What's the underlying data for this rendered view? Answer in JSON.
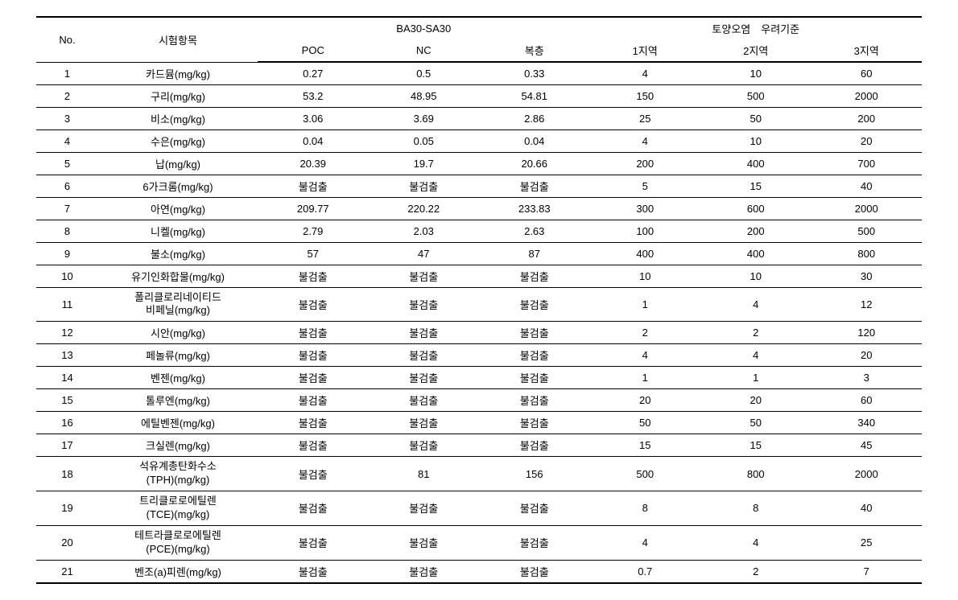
{
  "table": {
    "header": {
      "no": "No.",
      "item": "시험항목",
      "group1": "BA30-SA30",
      "group2": "토양오염　우려기준",
      "poc": "POC",
      "nc": "NC",
      "dup": "복층",
      "zone1": "1지역",
      "zone2": "2지역",
      "zone3": "3지역"
    },
    "rows": [
      {
        "no": "1",
        "item": "카드뮴(mg/kg)",
        "poc": "0.27",
        "nc": "0.5",
        "dup": "0.33",
        "z1": "4",
        "z2": "10",
        "z3": "60"
      },
      {
        "no": "2",
        "item": "구리(mg/kg)",
        "poc": "53.2",
        "nc": "48.95",
        "dup": "54.81",
        "z1": "150",
        "z2": "500",
        "z3": "2000"
      },
      {
        "no": "3",
        "item": "비소(mg/kg)",
        "poc": "3.06",
        "nc": "3.69",
        "dup": "2.86",
        "z1": "25",
        "z2": "50",
        "z3": "200"
      },
      {
        "no": "4",
        "item": "수은(mg/kg)",
        "poc": "0.04",
        "nc": "0.05",
        "dup": "0.04",
        "z1": "4",
        "z2": "10",
        "z3": "20"
      },
      {
        "no": "5",
        "item": "납(mg/kg)",
        "poc": "20.39",
        "nc": "19.7",
        "dup": "20.66",
        "z1": "200",
        "z2": "400",
        "z3": "700"
      },
      {
        "no": "6",
        "item": "6가크롬(mg/kg)",
        "poc": "불검출",
        "nc": "불검출",
        "dup": "불검출",
        "z1": "5",
        "z2": "15",
        "z3": "40"
      },
      {
        "no": "7",
        "item": "아연(mg/kg)",
        "poc": "209.77",
        "nc": "220.22",
        "dup": "233.83",
        "z1": "300",
        "z2": "600",
        "z3": "2000"
      },
      {
        "no": "8",
        "item": "니켈(mg/kg)",
        "poc": "2.79",
        "nc": "2.03",
        "dup": "2.63",
        "z1": "100",
        "z2": "200",
        "z3": "500"
      },
      {
        "no": "9",
        "item": "불소(mg/kg)",
        "poc": "57",
        "nc": "47",
        "dup": "87",
        "z1": "400",
        "z2": "400",
        "z3": "800"
      },
      {
        "no": "10",
        "item": "유기인화합물(mg/kg)",
        "poc": "불검출",
        "nc": "불검출",
        "dup": "불검출",
        "z1": "10",
        "z2": "10",
        "z3": "30"
      },
      {
        "no": "11",
        "item": "폴리클로리네이티드\n비페닐(mg/kg)",
        "poc": "불검출",
        "nc": "불검출",
        "dup": "불검출",
        "z1": "1",
        "z2": "4",
        "z3": "12"
      },
      {
        "no": "12",
        "item": "시안(mg/kg)",
        "poc": "불검출",
        "nc": "불검출",
        "dup": "불검출",
        "z1": "2",
        "z2": "2",
        "z3": "120"
      },
      {
        "no": "13",
        "item": "페놀류(mg/kg)",
        "poc": "불검출",
        "nc": "불검출",
        "dup": "불검출",
        "z1": "4",
        "z2": "4",
        "z3": "20"
      },
      {
        "no": "14",
        "item": "벤젠(mg/kg)",
        "poc": "불검출",
        "nc": "불검출",
        "dup": "불검출",
        "z1": "1",
        "z2": "1",
        "z3": "3"
      },
      {
        "no": "15",
        "item": "톨루엔(mg/kg)",
        "poc": "불검출",
        "nc": "불검출",
        "dup": "불검출",
        "z1": "20",
        "z2": "20",
        "z3": "60"
      },
      {
        "no": "16",
        "item": "에틸벤젠(mg/kg)",
        "poc": "불검출",
        "nc": "불검출",
        "dup": "불검출",
        "z1": "50",
        "z2": "50",
        "z3": "340"
      },
      {
        "no": "17",
        "item": "크실렌(mg/kg)",
        "poc": "불검출",
        "nc": "불검출",
        "dup": "불검출",
        "z1": "15",
        "z2": "15",
        "z3": "45"
      },
      {
        "no": "18",
        "item": "석유계총탄화수소\n(TPH)(mg/kg)",
        "poc": "불검출",
        "nc": "81",
        "dup": "156",
        "z1": "500",
        "z2": "800",
        "z3": "2000"
      },
      {
        "no": "19",
        "item": "트리클로로에틸렌\n(TCE)(mg/kg)",
        "poc": "불검출",
        "nc": "불검출",
        "dup": "불검출",
        "z1": "8",
        "z2": "8",
        "z3": "40"
      },
      {
        "no": "20",
        "item": "테트라클로로에틸렌\n(PCE)(mg/kg)",
        "poc": "불검출",
        "nc": "불검출",
        "dup": "불검출",
        "z1": "4",
        "z2": "4",
        "z3": "25"
      },
      {
        "no": "21",
        "item": "벤조(a)피렌(mg/kg)",
        "poc": "불검출",
        "nc": "불검출",
        "dup": "불검출",
        "z1": "0.7",
        "z2": "2",
        "z3": "7"
      }
    ],
    "styling": {
      "background_color": "#ffffff",
      "text_color": "#000000",
      "border_color": "#000000",
      "thick_border_width": 2,
      "thin_border_width": 1,
      "font_size": 13,
      "font_family": "Malgun Gothic",
      "column_widths_pct": [
        7,
        18,
        12.5,
        12.5,
        12.5,
        12.5,
        12.5,
        12.5
      ],
      "text_align": "center"
    }
  }
}
